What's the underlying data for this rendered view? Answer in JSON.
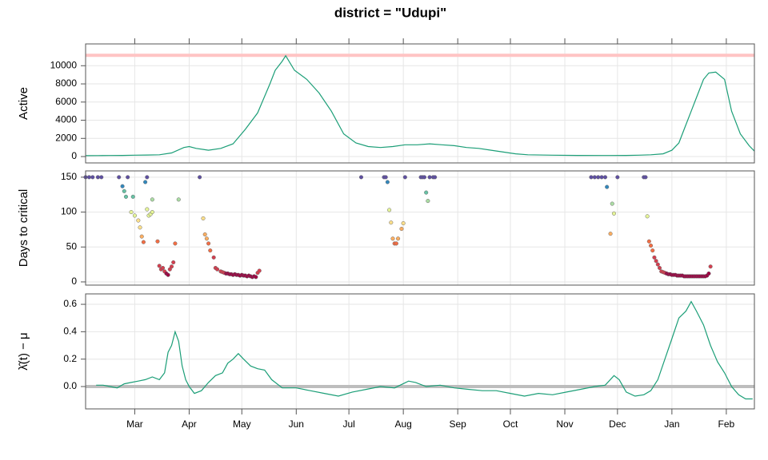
{
  "title": "district = \"Udupi\"",
  "chart_data": [
    {
      "type": "line",
      "ylabel": "Active",
      "color": "#1b9e77",
      "grid": true,
      "xlim": [
        -28,
        353
      ],
      "ylim": [
        -700,
        12400
      ],
      "yticks": [
        0,
        2000,
        4000,
        6000,
        8000,
        10000
      ],
      "hline": {
        "value": 11150,
        "color": "#ffc4c4"
      },
      "x": [
        -28,
        -21,
        -14,
        -7,
        0,
        7,
        14,
        21,
        28,
        31,
        35,
        42,
        49,
        56,
        63,
        70,
        77,
        80,
        84,
        86,
        91,
        98,
        105,
        112,
        119,
        126,
        133,
        140,
        147,
        154,
        161,
        168,
        175,
        182,
        189,
        196,
        203,
        210,
        217,
        224,
        238,
        252,
        266,
        280,
        287,
        294,
        301,
        306,
        310,
        313,
        317,
        320,
        324,
        327,
        331,
        336,
        340,
        345,
        350,
        353
      ],
      "values": [
        100,
        110,
        120,
        130,
        150,
        170,
        200,
        400,
        1000,
        1100,
        900,
        700,
        900,
        1400,
        3000,
        4800,
        8000,
        9500,
        10500,
        11100,
        9500,
        8500,
        7000,
        5000,
        2500,
        1500,
        1100,
        1000,
        1100,
        1300,
        1300,
        1400,
        1300,
        1200,
        1000,
        900,
        700,
        500,
        300,
        200,
        150,
        130,
        120,
        130,
        150,
        200,
        300,
        700,
        1500,
        3000,
        5000,
        6500,
        8500,
        9200,
        9300,
        8500,
        5000,
        2500,
        1200,
        600
      ]
    },
    {
      "type": "scatter",
      "ylabel": "Days to critical",
      "grid": true,
      "xlim": [
        -28,
        353
      ],
      "ylim": [
        -4.6,
        159
      ],
      "yticks": [
        0,
        50,
        100,
        150
      ],
      "color_scale": {
        "stops": [
          0,
          25,
          50,
          70,
          85,
          100,
          115,
          125,
          140,
          150
        ],
        "colors": [
          "#9e0142",
          "#d53e4f",
          "#f46d43",
          "#fdae61",
          "#fee08b",
          "#e6f598",
          "#abdda4",
          "#66c2a5",
          "#3288bd",
          "#5e4fa2"
        ]
      },
      "x": [
        -28,
        -26,
        -24,
        -21,
        -19,
        -9,
        -7,
        -6,
        -5,
        -4,
        -2,
        -1,
        0,
        2,
        3,
        4,
        5,
        6,
        7,
        7,
        8,
        9,
        10,
        10,
        13,
        14,
        15,
        16,
        17,
        18,
        19,
        20,
        21,
        22,
        23,
        25,
        37,
        39,
        40,
        41,
        42,
        43,
        45,
        46,
        47,
        49,
        50,
        51,
        52,
        53,
        54,
        55,
        56,
        57,
        58,
        59,
        60,
        61,
        62,
        63,
        64,
        65,
        66,
        67,
        68,
        69,
        70,
        71,
        129,
        142,
        143,
        144,
        145,
        146,
        147,
        148,
        149,
        150,
        152,
        153,
        154,
        163,
        164,
        165,
        166,
        167,
        168,
        170,
        171,
        260,
        262,
        264,
        266,
        268,
        269,
        271,
        272,
        273,
        275,
        290,
        291,
        292,
        293,
        294,
        295,
        296,
        297,
        298,
        299,
        300,
        301,
        302,
        303,
        304,
        305,
        306,
        307,
        308,
        309,
        310,
        311,
        312,
        313,
        314,
        315,
        316,
        317,
        318,
        319,
        320,
        321,
        322,
        323,
        324,
        325,
        326,
        327,
        328
      ],
      "values": [
        150,
        150,
        150,
        150,
        150,
        150,
        137,
        130,
        122,
        150,
        100,
        122,
        95,
        88,
        78,
        65,
        57,
        143,
        150,
        104,
        95,
        97,
        100,
        118,
        58,
        23,
        18,
        20,
        15,
        12,
        10,
        18,
        22,
        28,
        55,
        118,
        150,
        91,
        68,
        62,
        55,
        45,
        35,
        20,
        18,
        15,
        14,
        13,
        12,
        12,
        11,
        11,
        10,
        11,
        10,
        10,
        9,
        10,
        9,
        9,
        8,
        9,
        8,
        7,
        8,
        7,
        13,
        16,
        150,
        150,
        150,
        143,
        103,
        85,
        62,
        55,
        55,
        62,
        76,
        84,
        150,
        150,
        150,
        150,
        128,
        116,
        150,
        150,
        150,
        150,
        150,
        150,
        150,
        150,
        136,
        69,
        112,
        98,
        150,
        150,
        150,
        94,
        58,
        52,
        45,
        35,
        30,
        25,
        20,
        15,
        14,
        13,
        12,
        11,
        11,
        10,
        10,
        10,
        9,
        9,
        9,
        9,
        8,
        8,
        8,
        8,
        8,
        8,
        8,
        8,
        8,
        8,
        8,
        8,
        8,
        9,
        12,
        22
      ]
    },
    {
      "type": "line",
      "ylabel": "λ̂(t) − μ",
      "color": "#1b9e77",
      "grid": true,
      "xlim": [
        -28,
        353
      ],
      "ylim": [
        -0.163,
        0.676
      ],
      "yticks": [
        {
          "value": 0,
          "label": "0.0"
        },
        {
          "value": 0.2,
          "label": "0.2"
        },
        {
          "value": 0.4,
          "label": "0.4"
        },
        {
          "value": 0.6,
          "label": "0.6"
        }
      ],
      "xticks": [
        {
          "value": 0,
          "label": "Mar"
        },
        {
          "value": 31,
          "label": "Apr"
        },
        {
          "value": 61,
          "label": "May"
        },
        {
          "value": 92,
          "label": "Jun"
        },
        {
          "value": 122,
          "label": "Jul"
        },
        {
          "value": 153,
          "label": "Aug"
        },
        {
          "value": 184,
          "label": "Sep"
        },
        {
          "value": 214,
          "label": "Oct"
        },
        {
          "value": 245,
          "label": "Nov"
        },
        {
          "value": 275,
          "label": "Dec"
        },
        {
          "value": 306,
          "label": "Jan"
        },
        {
          "value": 337,
          "label": "Feb"
        }
      ],
      "hline": {
        "value": 0,
        "color": "#bdbdbd"
      },
      "x": [
        -22,
        -18,
        -14,
        -10,
        -6,
        -2,
        2,
        6,
        10,
        14,
        17,
        19,
        21,
        23,
        25,
        27,
        29,
        31,
        34,
        38,
        42,
        46,
        50,
        53,
        56,
        59,
        62,
        66,
        70,
        74,
        78,
        84,
        92,
        100,
        108,
        116,
        124,
        132,
        140,
        148,
        156,
        160,
        166,
        174,
        182,
        190,
        198,
        206,
        214,
        222,
        230,
        238,
        246,
        254,
        262,
        268,
        273,
        276,
        280,
        285,
        290,
        294,
        298,
        302,
        306,
        310,
        314,
        317,
        320,
        324,
        328,
        332,
        336,
        340,
        344,
        348,
        352
      ],
      "values": [
        0.01,
        0.01,
        0.0,
        -0.01,
        0.02,
        0.03,
        0.04,
        0.05,
        0.07,
        0.05,
        0.1,
        0.25,
        0.3,
        0.4,
        0.33,
        0.15,
        0.05,
        0.0,
        -0.05,
        -0.03,
        0.03,
        0.08,
        0.1,
        0.17,
        0.2,
        0.24,
        0.2,
        0.15,
        0.13,
        0.12,
        0.05,
        -0.01,
        -0.01,
        -0.03,
        -0.05,
        -0.07,
        -0.04,
        -0.02,
        0.0,
        -0.01,
        0.04,
        0.03,
        0.0,
        0.01,
        -0.01,
        -0.02,
        -0.03,
        -0.03,
        -0.05,
        -0.07,
        -0.05,
        -0.06,
        -0.04,
        -0.02,
        0.0,
        0.01,
        0.08,
        0.05,
        -0.04,
        -0.07,
        -0.06,
        -0.03,
        0.05,
        0.2,
        0.35,
        0.5,
        0.55,
        0.62,
        0.55,
        0.45,
        0.3,
        0.18,
        0.1,
        0.0,
        -0.06,
        -0.09,
        -0.09
      ]
    }
  ]
}
